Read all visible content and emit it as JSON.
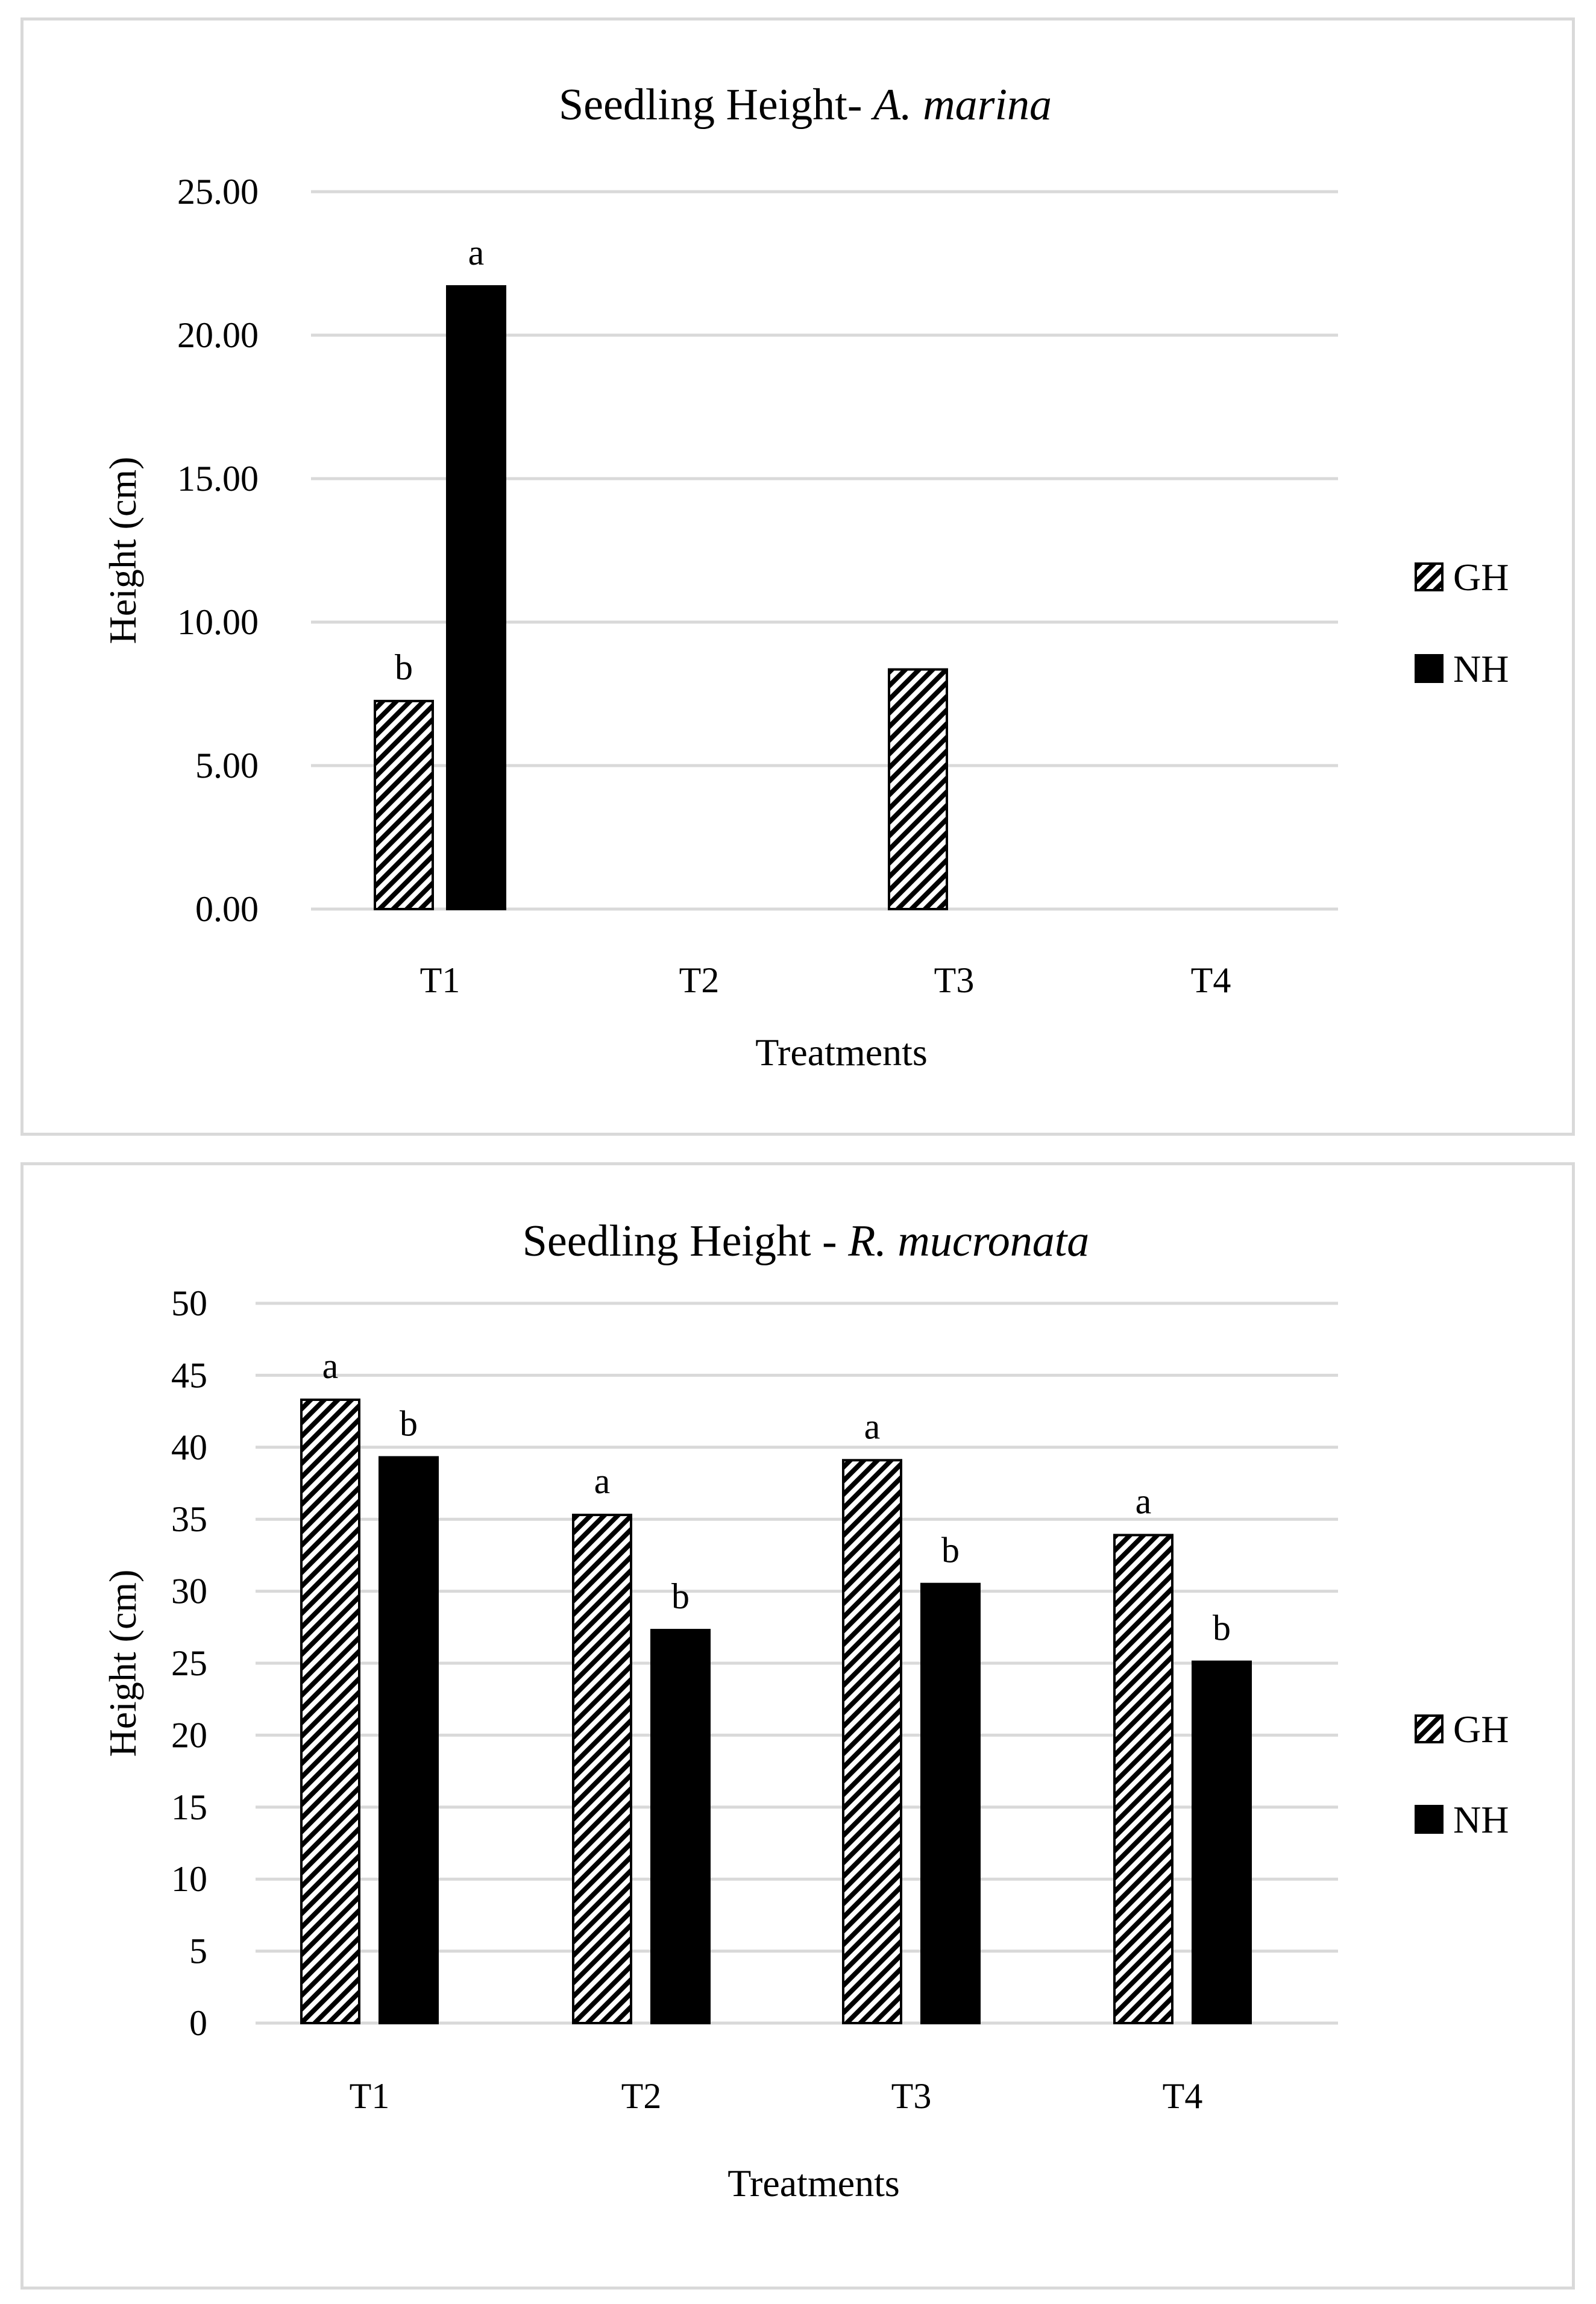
{
  "chart_data": [
    {
      "type": "bar",
      "title": {
        "main": "Seedling Height- ",
        "species": "A. marina"
      },
      "xlabel": "Treatments",
      "ylabel": "Height (cm)",
      "ylim": [
        0,
        25
      ],
      "tick_labels": [
        "0.00",
        "5.00",
        "10.00",
        "15.00",
        "20.00",
        "25.00"
      ],
      "categories": [
        "T1",
        "T2",
        "T3",
        "T4"
      ],
      "series": [
        {
          "name": "GH",
          "pattern": "hatched",
          "values": [
            7.25,
            0,
            8.35,
            0
          ]
        },
        {
          "name": "NH",
          "pattern": "solid",
          "values": [
            21.7,
            0,
            0,
            0
          ]
        }
      ],
      "annotations": [
        {
          "category": "T1",
          "series": "GH",
          "text": "b"
        },
        {
          "category": "T1",
          "series": "NH",
          "text": "a"
        }
      ],
      "legend_position": "right",
      "grid": true
    },
    {
      "type": "bar",
      "title": {
        "main": "Seedling Height - ",
        "species": "R. mucronata"
      },
      "xlabel": "Treatments",
      "ylabel": "Height (cm)",
      "ylim": [
        0,
        50
      ],
      "tick_labels": [
        "0",
        "5",
        "10",
        "15",
        "20",
        "25",
        "30",
        "35",
        "40",
        "45",
        "50"
      ],
      "categories": [
        "T1",
        "T2",
        "T3",
        "T4"
      ],
      "series": [
        {
          "name": "GH",
          "pattern": "hatched",
          "values": [
            43.3,
            35.3,
            39.1,
            33.9
          ]
        },
        {
          "name": "NH",
          "pattern": "solid",
          "values": [
            39.3,
            27.3,
            30.5,
            25.1
          ]
        }
      ],
      "annotations": [
        {
          "category": "T1",
          "series": "GH",
          "text": "a"
        },
        {
          "category": "T1",
          "series": "NH",
          "text": "b"
        },
        {
          "category": "T2",
          "series": "GH",
          "text": "a"
        },
        {
          "category": "T2",
          "series": "NH",
          "text": "b"
        },
        {
          "category": "T3",
          "series": "GH",
          "text": "a"
        },
        {
          "category": "T3",
          "series": "NH",
          "text": "b"
        },
        {
          "category": "T4",
          "series": "GH",
          "text": "a"
        },
        {
          "category": "T4",
          "series": "NH",
          "text": "b"
        }
      ],
      "legend_position": "right",
      "grid": true
    }
  ]
}
